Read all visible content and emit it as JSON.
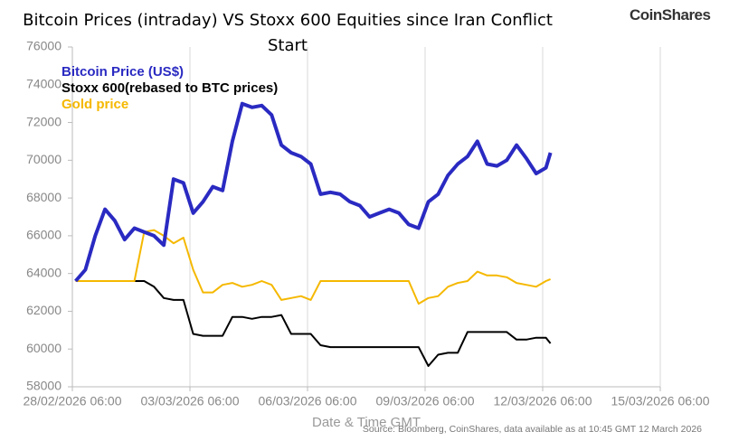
{
  "chart_data": {
    "type": "line",
    "title": "Bitcoin Prices (intraday) VS  Stoxx 600 Equities since Iran Conflict Start",
    "logo": "CoinShares",
    "xlabel": "Date & Time GMT",
    "source": "Source: Bloomberg, CoinShares, data available as at 10:45 GMT 12 March 2026",
    "legend": "upper left",
    "grid": "x",
    "x": [
      "2026-02-28 08:00",
      "2026-02-28 14:00",
      "2026-02-28 20:00",
      "2026-03-01 02:00",
      "2026-03-01 08:00",
      "2026-03-01 14:00",
      "2026-03-01 20:00",
      "2026-03-02 02:00",
      "2026-03-02 08:00",
      "2026-03-02 14:00",
      "2026-03-02 20:00",
      "2026-03-03 02:00",
      "2026-03-03 08:00",
      "2026-03-03 14:00",
      "2026-03-03 20:00",
      "2026-03-04 02:00",
      "2026-03-04 08:00",
      "2026-03-04 14:00",
      "2026-03-04 20:00",
      "2026-03-05 02:00",
      "2026-03-05 08:00",
      "2026-03-05 14:00",
      "2026-03-05 20:00",
      "2026-03-06 02:00",
      "2026-03-06 08:00",
      "2026-03-06 14:00",
      "2026-03-06 20:00",
      "2026-03-07 02:00",
      "2026-03-07 08:00",
      "2026-03-07 14:00",
      "2026-03-07 20:00",
      "2026-03-08 02:00",
      "2026-03-08 08:00",
      "2026-03-08 14:00",
      "2026-03-08 20:00",
      "2026-03-09 02:00",
      "2026-03-09 08:00",
      "2026-03-09 14:00",
      "2026-03-09 20:00",
      "2026-03-10 02:00",
      "2026-03-10 08:00",
      "2026-03-10 14:00",
      "2026-03-10 20:00",
      "2026-03-11 02:00",
      "2026-03-11 08:00",
      "2026-03-11 14:00",
      "2026-03-11 20:00",
      "2026-03-12 02:00",
      "2026-03-12 08:00",
      "2026-03-12 10:45"
    ],
    "series": [
      {
        "name": "Bitcoin Price (US$)",
        "color": "#2a2ac2",
        "width": 4,
        "values": [
          63600,
          64200,
          66000,
          67400,
          66800,
          65800,
          66400,
          66200,
          66000,
          65500,
          69000,
          68800,
          67200,
          67800,
          68600,
          68400,
          71000,
          73000,
          72800,
          72900,
          72400,
          70800,
          70400,
          70200,
          69800,
          68200,
          68300,
          68200,
          67800,
          67600,
          67000,
          67200,
          67400,
          67200,
          66600,
          66400,
          67800,
          68200,
          69200,
          69800,
          70200,
          71000,
          69800,
          69700,
          70000,
          70800,
          70100,
          69300,
          69600,
          70400
        ]
      },
      {
        "name": "Stoxx 600(rebased to BTC prices)",
        "color": "#000000",
        "width": 2,
        "values": [
          63600,
          63600,
          63600,
          63600,
          63600,
          63600,
          63600,
          63600,
          63300,
          62700,
          62600,
          62600,
          60800,
          60700,
          60700,
          60700,
          61700,
          61700,
          61600,
          61700,
          61700,
          61800,
          60800,
          60800,
          60800,
          60200,
          60100,
          60100,
          60100,
          60100,
          60100,
          60100,
          60100,
          60100,
          60100,
          60100,
          59100,
          59700,
          59800,
          59800,
          60900,
          60900,
          60900,
          60900,
          60900,
          60500,
          60500,
          60600,
          60600,
          60300
        ]
      },
      {
        "name": "Gold price",
        "color": "#f5b800",
        "width": 2,
        "values": [
          63600,
          63600,
          63600,
          63600,
          63600,
          63600,
          63600,
          66200,
          66300,
          66000,
          65600,
          65900,
          64200,
          63000,
          63000,
          63400,
          63500,
          63300,
          63400,
          63600,
          63400,
          62600,
          62700,
          62800,
          62600,
          63600,
          63600,
          63600,
          63600,
          63600,
          63600,
          63600,
          63600,
          63600,
          63600,
          62400,
          62700,
          62800,
          63300,
          63500,
          63600,
          64100,
          63900,
          63900,
          63800,
          63500,
          63400,
          63300,
          63600,
          63700
        ]
      }
    ],
    "xlim": [
      "2026-02-28 06:00",
      "2026-03-15 06:00"
    ],
    "xticks": [
      {
        "value": "2026-02-28 06:00",
        "label": "28/02/2026 06:00"
      },
      {
        "value": "2026-03-03 06:00",
        "label": "03/03/2026 06:00"
      },
      {
        "value": "2026-03-06 06:00",
        "label": "06/03/2026 06:00"
      },
      {
        "value": "2026-03-09 06:00",
        "label": "09/03/2026 06:00"
      },
      {
        "value": "2026-03-12 06:00",
        "label": "12/03/2026 06:00"
      },
      {
        "value": "2026-03-15 06:00",
        "label": "15/03/2026 06:00"
      }
    ],
    "ylim": [
      58000,
      76000
    ],
    "yticks": [
      58000,
      60000,
      62000,
      64000,
      66000,
      68000,
      70000,
      72000,
      74000,
      76000
    ]
  }
}
